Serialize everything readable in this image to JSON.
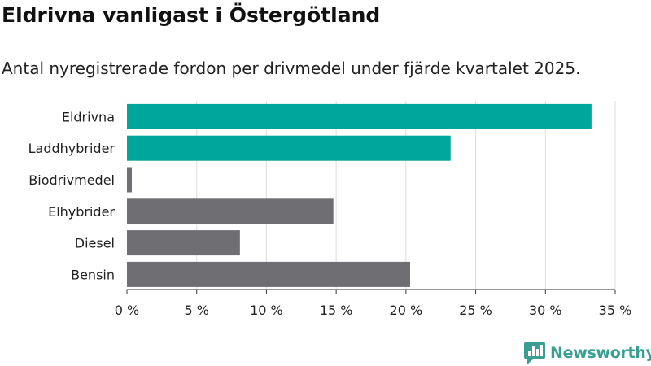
{
  "header": {
    "title": "Eldrivna vanligast i Östergötland",
    "subtitle": "Antal nyregistrerade fordon per drivmedel under fjärde kvartalet 2025."
  },
  "brand": {
    "name": "Newsworthy"
  },
  "colors": {
    "highlight": "#00a69a",
    "base": "#6f6e73",
    "grid": "#dddddd",
    "axis": "#333333",
    "brand": "#3a9e93"
  },
  "chart_data": {
    "type": "bar",
    "orientation": "horizontal",
    "categories": [
      "Eldrivna",
      "Laddhybrider",
      "Biodrivmedel",
      "Elhybrider",
      "Diesel",
      "Bensin"
    ],
    "values": [
      33.3,
      23.2,
      0.35,
      14.8,
      8.1,
      20.3
    ],
    "highlight": [
      true,
      true,
      false,
      false,
      false,
      false
    ],
    "xlim": [
      0,
      35
    ],
    "xticks": [
      0,
      5,
      10,
      15,
      20,
      25,
      30,
      35
    ],
    "xtick_labels": [
      "0 %",
      "5 %",
      "10 %",
      "15 %",
      "20 %",
      "25 %",
      "30 %",
      "35 %"
    ],
    "xlabel": "",
    "ylabel": "",
    "grid": true
  }
}
